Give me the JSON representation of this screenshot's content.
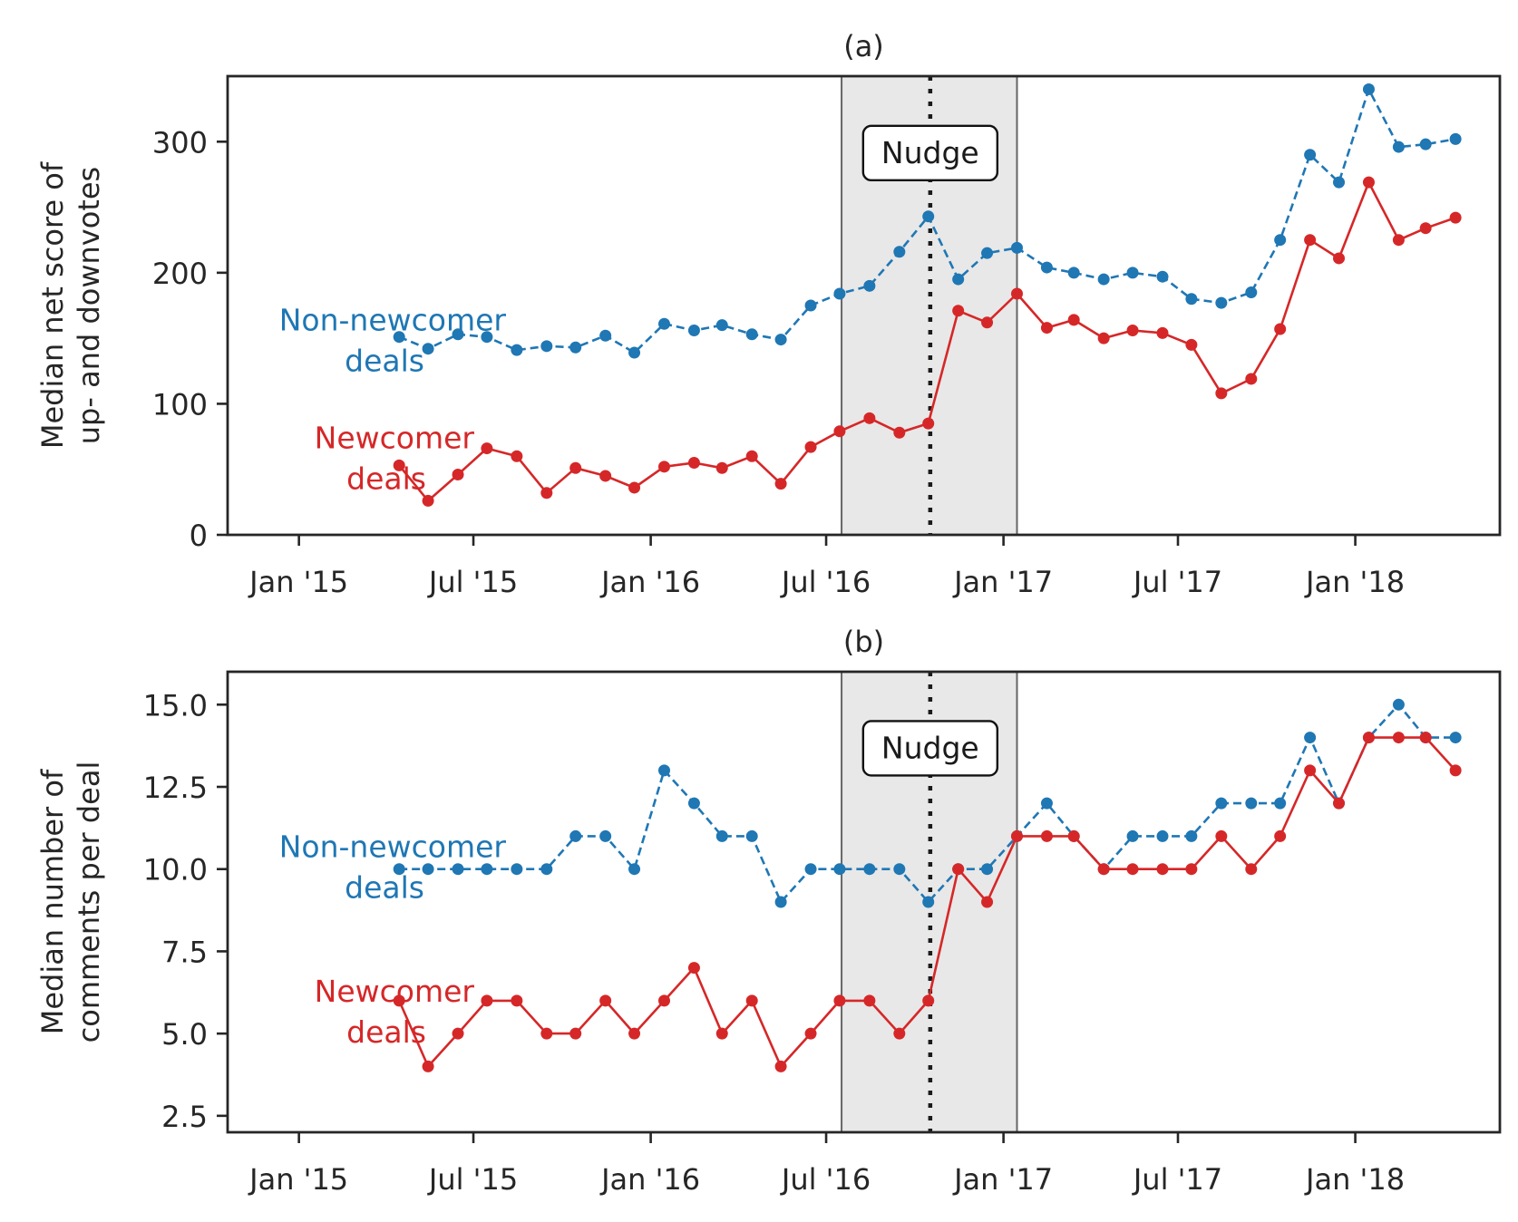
{
  "chart_data": [
    {
      "type": "line",
      "title": "(a)",
      "ylabel": "Median net score of\nup- and downvotes",
      "xlabel": "",
      "ylim": [
        0,
        350
      ],
      "yticks": [
        0,
        100,
        200,
        300
      ],
      "xlim": [
        "2014-10-19",
        "2018-05-31"
      ],
      "xticks": [
        {
          "date": "2015-01-01",
          "label": "Jan '15"
        },
        {
          "date": "2015-07-01",
          "label": "Jul '15"
        },
        {
          "date": "2016-01-01",
          "label": "Jan '16"
        },
        {
          "date": "2016-07-01",
          "label": "Jul '16"
        },
        {
          "date": "2017-01-01",
          "label": "Jan '17"
        },
        {
          "date": "2017-07-01",
          "label": "Jul '17"
        },
        {
          "date": "2018-01-01",
          "label": "Jan '18"
        }
      ],
      "shaded_region": [
        "2016-07-17",
        "2017-01-15"
      ],
      "nudge_date": "2016-10-17",
      "nudge_label": "Nudge",
      "nudge_label_y": 292,
      "grid": false,
      "x": [
        "2015-04-15",
        "2015-05-15",
        "2015-06-15",
        "2015-07-15",
        "2015-08-15",
        "2015-09-15",
        "2015-10-15",
        "2015-11-15",
        "2015-12-15",
        "2016-01-15",
        "2016-02-15",
        "2016-03-15",
        "2016-04-15",
        "2016-05-15",
        "2016-06-15",
        "2016-07-15",
        "2016-08-15",
        "2016-09-15",
        "2016-10-15",
        "2016-11-15",
        "2016-12-15",
        "2017-01-15",
        "2017-02-15",
        "2017-03-15",
        "2017-04-15",
        "2017-05-15",
        "2017-06-15",
        "2017-07-15",
        "2017-08-15",
        "2017-09-15",
        "2017-10-15",
        "2017-11-15",
        "2017-12-15",
        "2018-01-15",
        "2018-02-15",
        "2018-03-15",
        "2018-04-15"
      ],
      "series": [
        {
          "name": "Non-newcomer\ndeals",
          "color": "#1f77b4",
          "style": "dashed",
          "values": [
            151,
            142,
            153,
            151,
            141,
            144,
            143,
            152,
            139,
            161,
            156,
            160,
            153,
            149,
            175,
            184,
            190,
            216,
            243,
            195,
            215,
            219,
            204,
            200,
            195,
            200,
            197,
            180,
            177,
            185,
            225,
            290,
            269,
            340,
            296,
            298,
            302
          ],
          "label_y": 152
        },
        {
          "name": "Newcomer\ndeals",
          "color": "#d62728",
          "style": "solid",
          "values": [
            53,
            26,
            46,
            66,
            60,
            32,
            51,
            45,
            36,
            52,
            55,
            51,
            60,
            39,
            67,
            79,
            89,
            78,
            85,
            171,
            162,
            184,
            158,
            164,
            150,
            156,
            154,
            145,
            108,
            119,
            157,
            225,
            211,
            269,
            225,
            234,
            242
          ],
          "label_y": 62
        }
      ]
    },
    {
      "type": "line",
      "title": "(b)",
      "ylabel": "Median number of\ncomments per deal",
      "xlabel": "",
      "ylim": [
        2.0,
        16.0
      ],
      "yticks": [
        2.5,
        5.0,
        7.5,
        10.0,
        12.5,
        15.0
      ],
      "ytick_labels": [
        "2.5",
        "5.0",
        "7.5",
        "10.0",
        "12.5",
        "15.0"
      ],
      "xlim": [
        "2014-10-19",
        "2018-05-31"
      ],
      "xticks": [
        {
          "date": "2015-01-01",
          "label": "Jan '15"
        },
        {
          "date": "2015-07-01",
          "label": "Jul '15"
        },
        {
          "date": "2016-01-01",
          "label": "Jan '16"
        },
        {
          "date": "2016-07-01",
          "label": "Jul '16"
        },
        {
          "date": "2017-01-01",
          "label": "Jan '17"
        },
        {
          "date": "2017-07-01",
          "label": "Jul '17"
        },
        {
          "date": "2018-01-01",
          "label": "Jan '18"
        }
      ],
      "shaded_region": [
        "2016-07-17",
        "2017-01-15"
      ],
      "nudge_date": "2016-10-17",
      "nudge_label": "Nudge",
      "nudge_label_y": 13.7,
      "grid": false,
      "x": [
        "2015-04-15",
        "2015-05-15",
        "2015-06-15",
        "2015-07-15",
        "2015-08-15",
        "2015-09-15",
        "2015-10-15",
        "2015-11-15",
        "2015-12-15",
        "2016-01-15",
        "2016-02-15",
        "2016-03-15",
        "2016-04-15",
        "2016-05-15",
        "2016-06-15",
        "2016-07-15",
        "2016-08-15",
        "2016-09-15",
        "2016-10-15",
        "2016-11-15",
        "2016-12-15",
        "2017-01-15",
        "2017-02-15",
        "2017-03-15",
        "2017-04-15",
        "2017-05-15",
        "2017-06-15",
        "2017-07-15",
        "2017-08-15",
        "2017-09-15",
        "2017-10-15",
        "2017-11-15",
        "2017-12-15",
        "2018-01-15",
        "2018-02-15",
        "2018-03-15",
        "2018-04-15"
      ],
      "series": [
        {
          "name": "Non-newcomer\ndeals",
          "color": "#1f77b4",
          "style": "dashed",
          "values": [
            10,
            10,
            10,
            10,
            10,
            10,
            11,
            11,
            10,
            13,
            12,
            11,
            11,
            9,
            10,
            10,
            10,
            10,
            9,
            10,
            10,
            11,
            12,
            11,
            10,
            11,
            11,
            11,
            12,
            12,
            12,
            14,
            12,
            14,
            15,
            14,
            14
          ],
          "label_y": 10.2
        },
        {
          "name": "Newcomer\ndeals",
          "color": "#d62728",
          "style": "solid",
          "values": [
            6,
            4,
            5,
            6,
            6,
            5,
            5,
            6,
            5,
            6,
            7,
            5,
            6,
            4,
            5,
            6,
            6,
            5,
            6,
            10,
            9,
            11,
            11,
            11,
            10,
            10,
            10,
            10,
            11,
            10,
            11,
            13,
            12,
            14,
            14,
            14,
            13
          ],
          "label_y": 5.8
        }
      ]
    }
  ]
}
